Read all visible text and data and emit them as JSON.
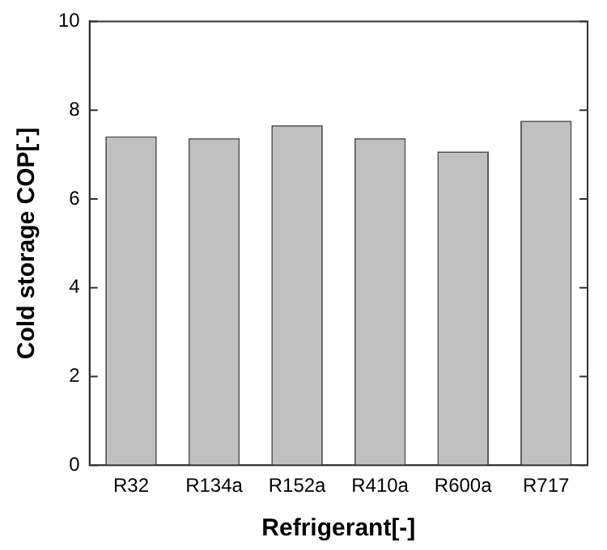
{
  "chart_data": {
    "type": "bar",
    "xlabel": "Refrigerant[-]",
    "ylabel": "Cold storage COP[-]",
    "categories": [
      "R32",
      "R134a",
      "R152a",
      "R410a",
      "R600a",
      "R717"
    ],
    "values": [
      7.41,
      7.37,
      7.66,
      7.37,
      7.07,
      7.76
    ],
    "color": "#c0c0c0",
    "ylim": [
      0,
      10
    ],
    "yticks": [
      0,
      2,
      4,
      6,
      8,
      10
    ],
    "grid": false,
    "legend": false
  }
}
